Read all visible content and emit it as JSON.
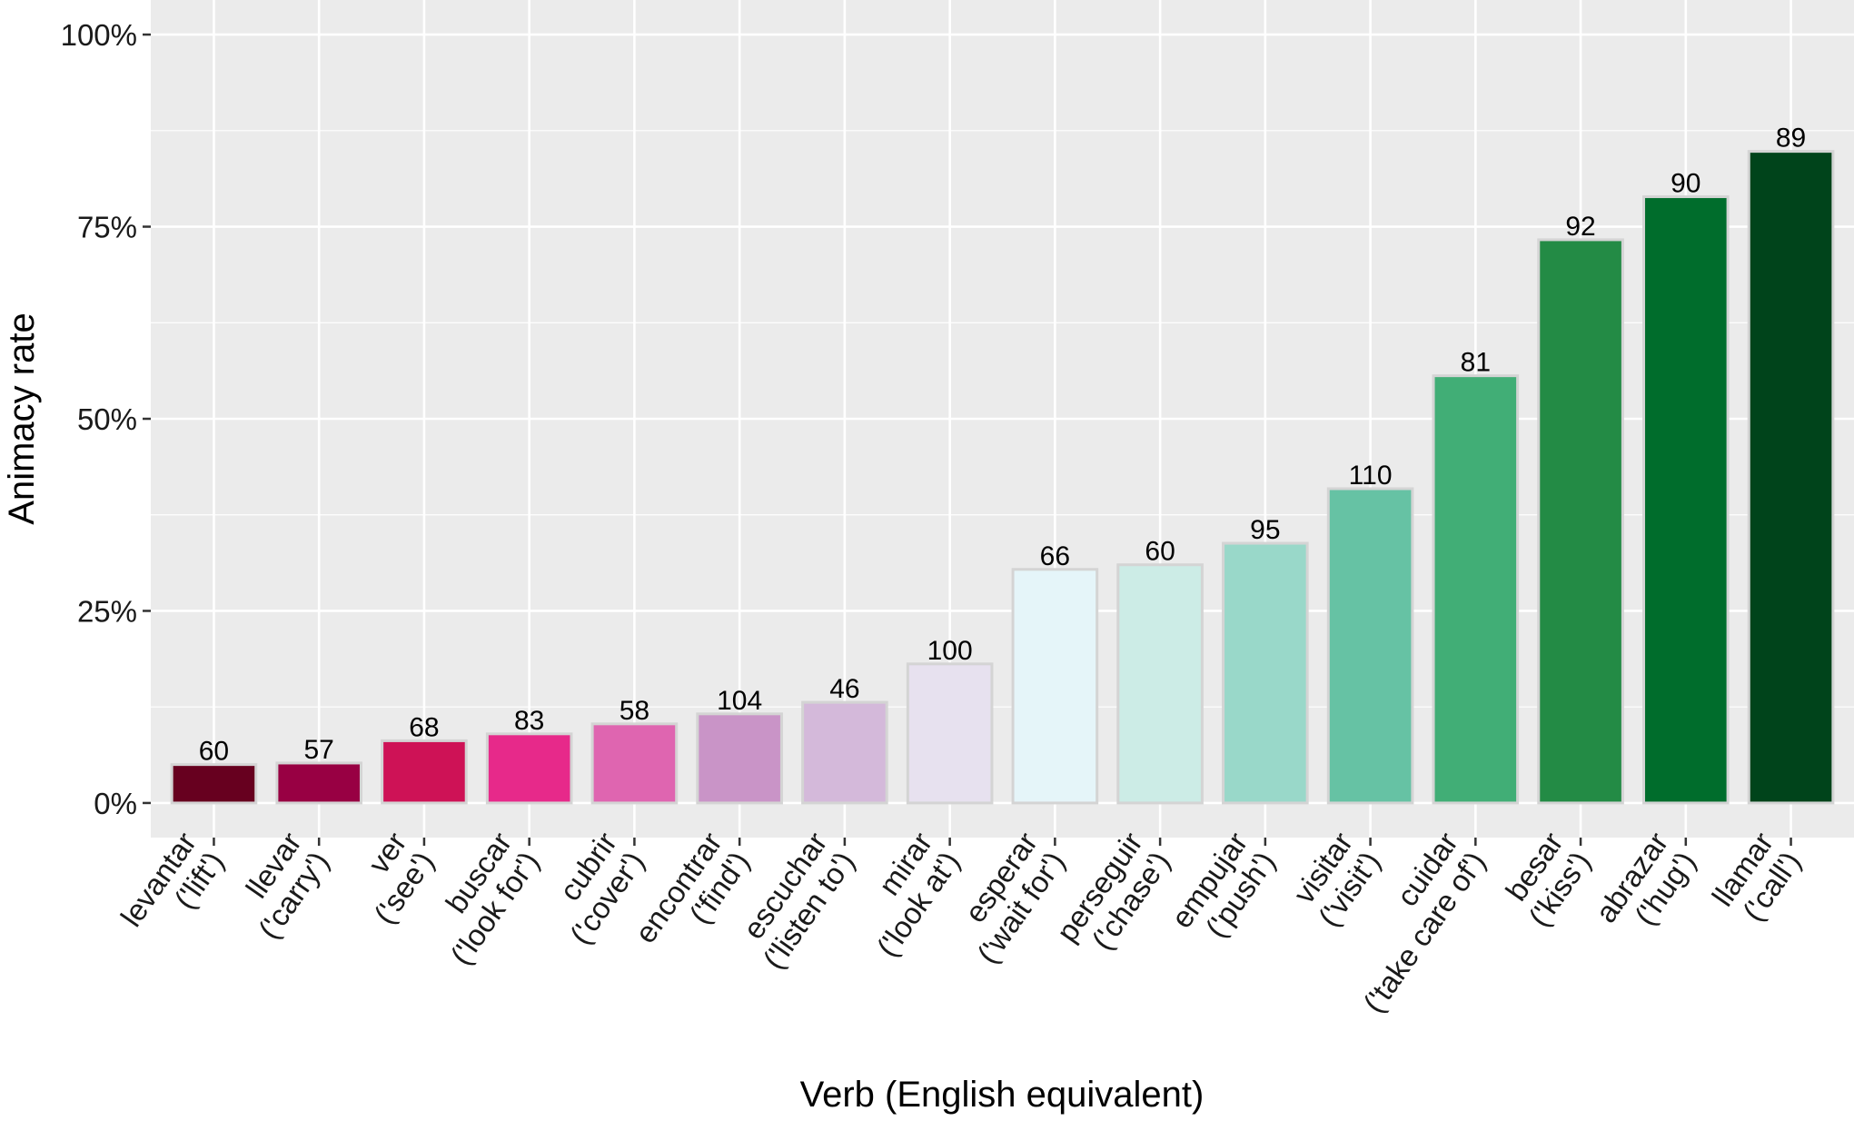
{
  "chart_data": {
    "type": "bar",
    "xlabel": "Verb (English equivalent)",
    "ylabel": "Animacy rate",
    "ylim": [
      -0.045,
      1.045
    ],
    "y_ticks": [
      0,
      0.25,
      0.5,
      0.75,
      1.0
    ],
    "y_tick_labels": [
      "0%",
      "25%",
      "50%",
      "75%",
      "100%"
    ],
    "grid": true,
    "legend": "none",
    "categories": [
      [
        "levantar",
        "('lift')"
      ],
      [
        "llevar",
        "('carry')"
      ],
      [
        "ver",
        "('see')"
      ],
      [
        "buscar",
        "('look for')"
      ],
      [
        "cubrir",
        "('cover')"
      ],
      [
        "encontrar",
        "('find')"
      ],
      [
        "escuchar",
        "('listen to')"
      ],
      [
        "mirar",
        "('look at')"
      ],
      [
        "esperar",
        "('wait for')"
      ],
      [
        "perseguir",
        "('chase')"
      ],
      [
        "empujar",
        "('push')"
      ],
      [
        "visitar",
        "('visit')"
      ],
      [
        "cuidar",
        "('take care of')"
      ],
      [
        "besar",
        "('kiss')"
      ],
      [
        "abrazar",
        "('hug')"
      ],
      [
        "llamar",
        "('call')"
      ]
    ],
    "values": [
      0.05,
      0.052,
      0.081,
      0.09,
      0.103,
      0.116,
      0.131,
      0.181,
      0.304,
      0.31,
      0.338,
      0.409,
      0.556,
      0.733,
      0.789,
      0.848
    ],
    "bar_labels": [
      "60",
      "57",
      "68",
      "83",
      "58",
      "104",
      "46",
      "100",
      "66",
      "60",
      "95",
      "110",
      "81",
      "92",
      "90",
      "89"
    ],
    "colors": [
      "#67001f",
      "#980043",
      "#ce1256",
      "#e7298a",
      "#df65b0",
      "#c994c7",
      "#d4b9da",
      "#e7e1ef",
      "#e5f5f9",
      "#ccece6",
      "#99d8c9",
      "#66c2a4",
      "#41ae76",
      "#238b45",
      "#006d2c",
      "#00441b"
    ],
    "bar_outline_color": "#d4d4d4",
    "panel_color": "#ebebeb",
    "grid_color": "#ffffff"
  }
}
